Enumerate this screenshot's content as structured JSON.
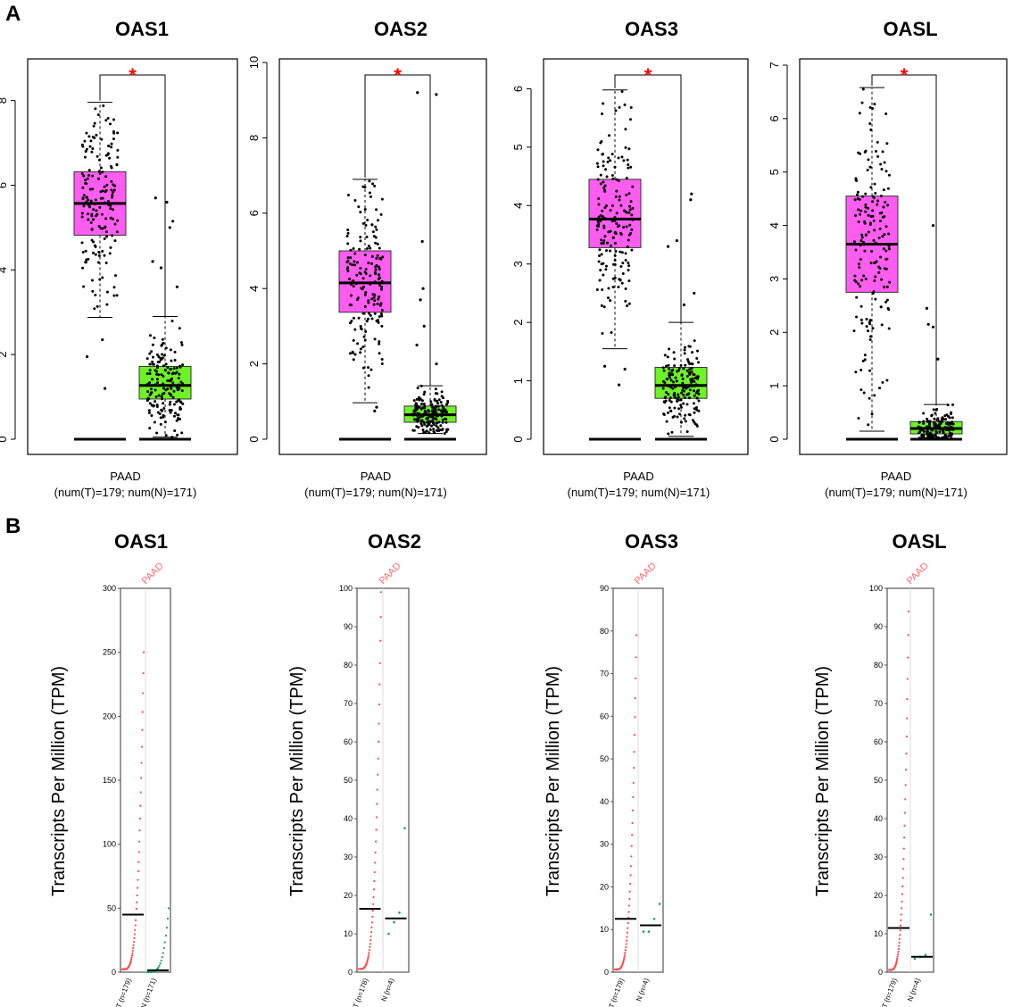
{
  "panel_labels": {
    "a": "A",
    "b": "B"
  },
  "colors": {
    "tumor_box": "#ff5cf0",
    "normal_box": "#6ef226",
    "star": "#ff0000",
    "tumor_dot_b": "#ff4a4a",
    "normal_dot_b": "#19a35a",
    "paad_label": "#ff6b6b"
  },
  "chart_data": [
    {
      "type": "box",
      "panel": "A",
      "title": "OAS1",
      "xlabel": "PAAD",
      "sublabel": "(num(T)=179; num(N)=171)",
      "ylim": [
        0,
        8.9
      ],
      "ticks": [
        0,
        2,
        4,
        6,
        8
      ],
      "significance": "*",
      "series": [
        {
          "name": "T",
          "box": {
            "q1": 4.82,
            "median": 5.57,
            "q3": 6.32,
            "whisker_low": 2.88,
            "whisker_high": 7.96
          },
          "outliers": [
            1.2,
            1.95,
            2.35
          ]
        },
        {
          "name": "N",
          "box": {
            "q1": 0.95,
            "median": 1.27,
            "q3": 1.72,
            "whisker_low": 0.05,
            "whisker_high": 2.9
          },
          "outliers": [
            3.6,
            4.05,
            4.2,
            5.0,
            5.15,
            5.6,
            5.7
          ]
        }
      ]
    },
    {
      "type": "box",
      "panel": "A",
      "title": "OAS2",
      "xlabel": "PAAD",
      "sublabel": "(num(T)=179; num(N)=171)",
      "ylim": [
        0,
        10
      ],
      "ticks": [
        0,
        2,
        4,
        6,
        8,
        10
      ],
      "significance": "*",
      "series": [
        {
          "name": "T",
          "box": {
            "q1": 3.37,
            "median": 4.15,
            "q3": 5.0,
            "whisker_low": 0.97,
            "whisker_high": 6.9
          },
          "outliers": [
            0.75,
            0.85
          ]
        },
        {
          "name": "N",
          "box": {
            "q1": 0.45,
            "median": 0.65,
            "q3": 0.88,
            "whisker_low": 0.15,
            "whisker_high": 1.42
          },
          "outliers": [
            2.0,
            2.5,
            3.0,
            3.7,
            4.0,
            5.25,
            9.15,
            9.2
          ]
        }
      ]
    },
    {
      "type": "box",
      "panel": "A",
      "title": "OAS3",
      "xlabel": "PAAD",
      "sublabel": "(num(T)=179; num(N)=171)",
      "ylim": [
        0,
        6.45
      ],
      "ticks": [
        0,
        1,
        2,
        3,
        4,
        5,
        6
      ],
      "significance": "*",
      "series": [
        {
          "name": "T",
          "box": {
            "q1": 3.28,
            "median": 3.77,
            "q3": 4.45,
            "whisker_low": 1.55,
            "whisker_high": 5.98
          },
          "outliers": [
            0.93,
            1.2,
            1.25
          ]
        },
        {
          "name": "N",
          "box": {
            "q1": 0.7,
            "median": 0.92,
            "q3": 1.23,
            "whisker_low": 0.05,
            "whisker_high": 2.0
          },
          "outliers": [
            2.3,
            2.5,
            3.3,
            3.4,
            4.1,
            4.2
          ]
        }
      ]
    },
    {
      "type": "box",
      "panel": "A",
      "title": "OASL",
      "xlabel": "PAAD",
      "sublabel": "(num(T)=179; num(N)=171)",
      "ylim": [
        0,
        7.05
      ],
      "ticks": [
        0,
        1,
        2,
        3,
        4,
        5,
        6,
        7
      ],
      "significance": "*",
      "series": [
        {
          "name": "T",
          "box": {
            "q1": 2.75,
            "median": 3.65,
            "q3": 4.55,
            "whisker_low": 0.15,
            "whisker_high": 6.58
          },
          "outliers": []
        },
        {
          "name": "N",
          "box": {
            "q1": 0.1,
            "median": 0.2,
            "q3": 0.33,
            "whisker_low": 0.0,
            "whisker_high": 0.65
          },
          "outliers": [
            1.5,
            2.1,
            2.15,
            2.45,
            4.0
          ]
        }
      ]
    },
    {
      "type": "scatter",
      "panel": "B",
      "title": "OAS1",
      "ylabel": "Transcripts Per Million (TPM)",
      "cancer_label": "PAAD",
      "ylim": [
        0,
        300
      ],
      "ticks": [
        0,
        50,
        100,
        150,
        200,
        250,
        300
      ],
      "groups": [
        {
          "label": "T (n=179)",
          "median": 45,
          "max": 250,
          "n_points": 60
        },
        {
          "label": "N (n=171)",
          "median": 1.5,
          "max": 50,
          "n_points": 24
        }
      ]
    },
    {
      "type": "scatter",
      "panel": "B",
      "title": "OAS2",
      "ylabel": "Transcripts Per Million (TPM)",
      "cancer_label": "PAAD",
      "ylim": [
        0,
        100
      ],
      "ticks": [
        0,
        10,
        20,
        30,
        40,
        50,
        60,
        70,
        80,
        90,
        100
      ],
      "groups": [
        {
          "label": "T (n=178)",
          "median": 16.5,
          "max": 99,
          "n_points": 60
        },
        {
          "label": "N (n=4)",
          "median": 14,
          "max": 37.5,
          "points": [
            10,
            13,
            15.5,
            37.5
          ]
        }
      ]
    },
    {
      "type": "scatter",
      "panel": "B",
      "title": "OAS3",
      "ylabel": "Transcripts Per Million (TPM)",
      "cancer_label": "PAAD",
      "ylim": [
        0,
        90
      ],
      "ticks": [
        0,
        10,
        20,
        30,
        40,
        50,
        60,
        70,
        80,
        90
      ],
      "groups": [
        {
          "label": "T (n=179)",
          "median": 12.5,
          "max": 79,
          "n_points": 60
        },
        {
          "label": "N (n=4)",
          "median": 11,
          "max": 16,
          "points": [
            9.5,
            9.5,
            12.5,
            16
          ]
        }
      ]
    },
    {
      "type": "scatter",
      "panel": "B",
      "title": "OASL",
      "ylabel": "Transcripts Per Million (TPM)",
      "cancer_label": "PAAD",
      "ylim": [
        0,
        100
      ],
      "ticks": [
        0,
        10,
        20,
        30,
        40,
        50,
        60,
        70,
        80,
        90,
        100
      ],
      "groups": [
        {
          "label": "T (n=179)",
          "median": 11.5,
          "max": 94,
          "n_points": 60
        },
        {
          "label": "N (n=4)",
          "median": 4,
          "max": 15,
          "points": [
            3.5,
            4,
            4.5,
            15
          ]
        }
      ]
    }
  ]
}
